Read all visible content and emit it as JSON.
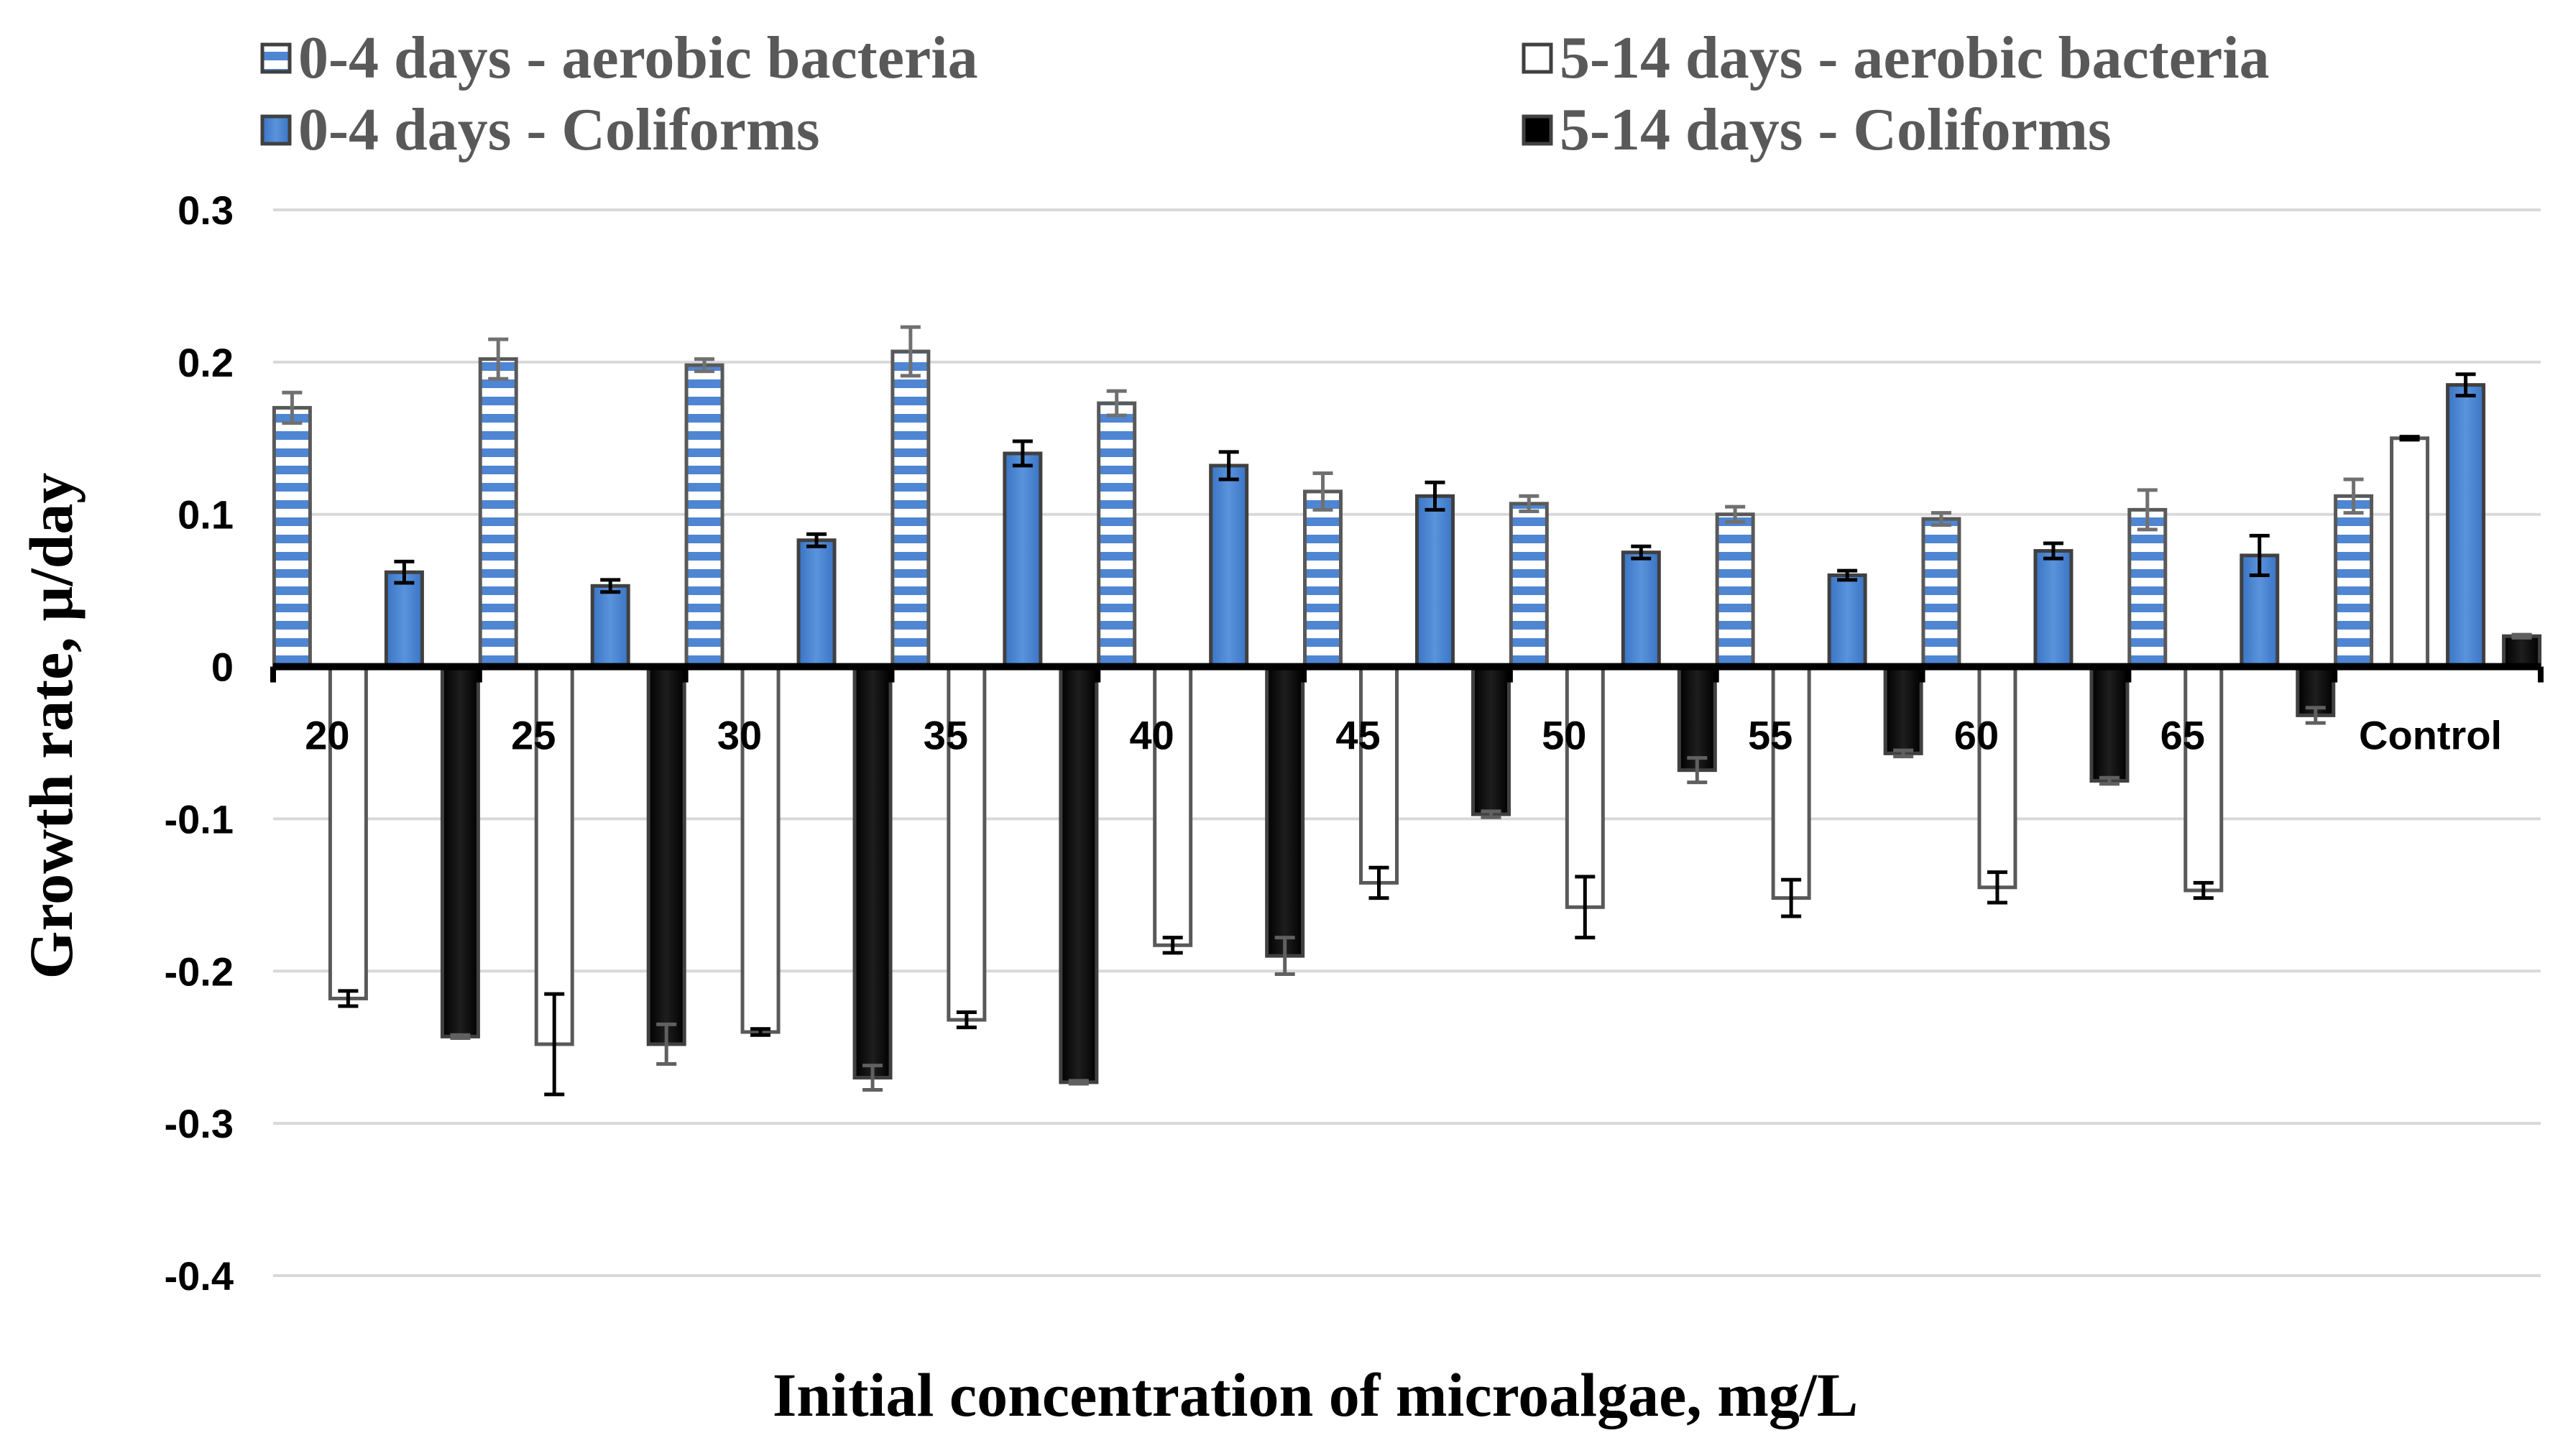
{
  "chart_data": {
    "type": "bar",
    "title": "",
    "xlabel": "Initial concentration of microalgae, mg/L",
    "ylabel": "Growth rate, µ/day",
    "ylim": [
      -0.4,
      0.3
    ],
    "yticks": [
      0.3,
      0.2,
      0.1,
      0,
      -0.1,
      -0.2,
      -0.3,
      -0.4
    ],
    "ytick_labels": [
      "0.3",
      "0.2",
      "0.1",
      "0",
      "-0.1",
      "-0.2",
      "-0.3",
      "-0.4"
    ],
    "grid": true,
    "legend_position": "top",
    "categories": [
      "20",
      "25",
      "30",
      "35",
      "40",
      "45",
      "50",
      "55",
      "60",
      "65",
      "Control"
    ],
    "series": [
      {
        "name": "0-4 days - aerobic bacteria",
        "pattern": "horizontal-stripes",
        "color": "#4f86d3",
        "edge_color": "#595959",
        "errorbar_color": "#707070",
        "values": [
          0.17,
          0.202,
          0.198,
          0.207,
          0.173,
          0.115,
          0.107,
          0.1,
          0.097,
          0.103,
          0.112
        ],
        "errors": [
          0.01,
          0.013,
          0.004,
          0.016,
          0.008,
          0.012,
          0.005,
          0.005,
          0.004,
          0.013,
          0.011
        ]
      },
      {
        "name": "5-14 days - aerobic bacteria",
        "pattern": "solid",
        "color": "#ffffff",
        "edge_color": "#595959",
        "errorbar_color": "#000000",
        "values": [
          -0.218,
          -0.248,
          -0.24,
          -0.232,
          -0.183,
          -0.142,
          -0.158,
          -0.152,
          -0.145,
          -0.147,
          0.15
        ],
        "errors": [
          0.005,
          0.033,
          0.002,
          0.005,
          0.005,
          0.01,
          0.02,
          0.012,
          0.01,
          0.005,
          0.001
        ]
      },
      {
        "name": "0-4 days - Coliforms",
        "pattern": "solid",
        "color": "#4a86d0",
        "edge_color": "#404040",
        "errorbar_color": "#000000",
        "values": [
          0.062,
          0.053,
          0.083,
          0.14,
          0.132,
          0.112,
          0.075,
          0.06,
          0.076,
          0.073,
          0.185
        ],
        "errors": [
          0.007,
          0.004,
          0.004,
          0.008,
          0.009,
          0.009,
          0.004,
          0.003,
          0.005,
          0.013,
          0.007
        ]
      },
      {
        "name": "5-14 days - Coliforms",
        "pattern": "solid",
        "color": "#000000",
        "edge_color": "#404040",
        "errorbar_color": "#606060",
        "values": [
          -0.243,
          -0.248,
          -0.27,
          -0.273,
          -0.19,
          -0.097,
          -0.068,
          -0.057,
          -0.075,
          -0.032,
          0.02
        ],
        "errors": [
          0.001,
          0.013,
          0.008,
          0.001,
          0.012,
          0.002,
          0.008,
          0.002,
          0.002,
          0.005,
          0.001
        ]
      }
    ]
  }
}
